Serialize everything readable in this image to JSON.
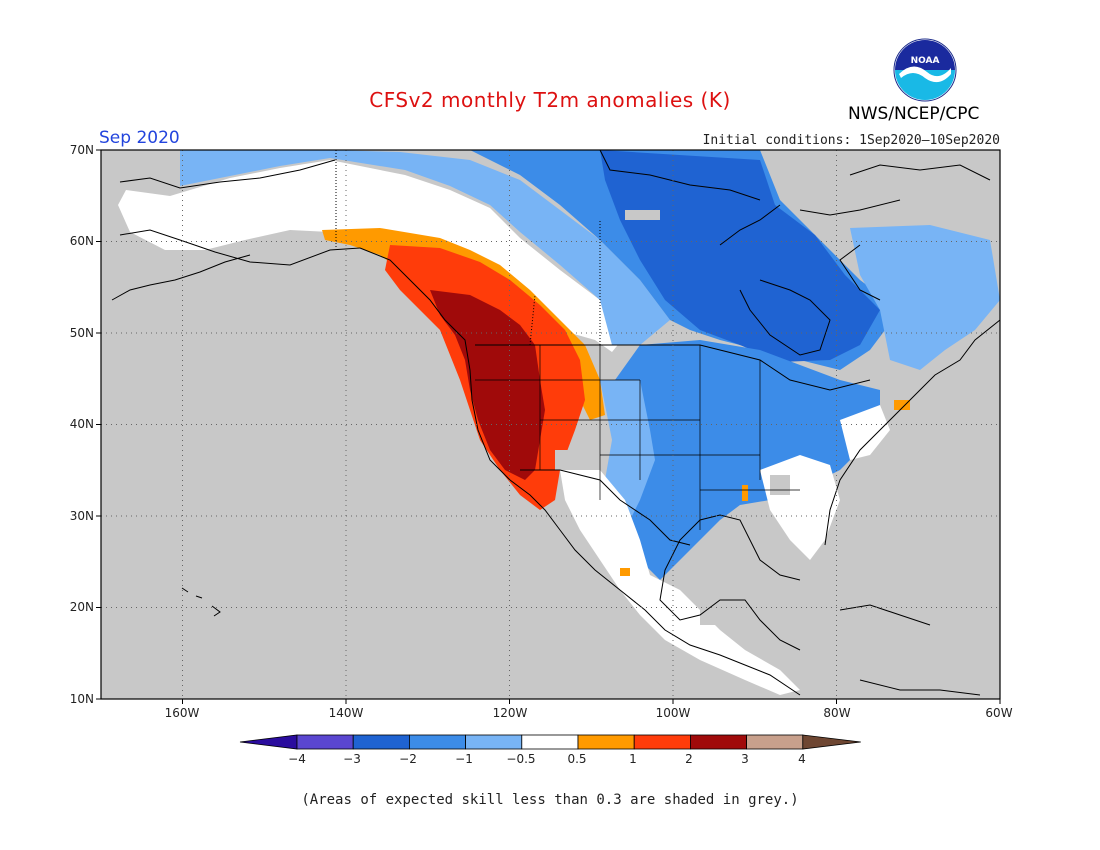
{
  "title": "CFSv2 monthly T2m anomalies (K)",
  "forecast_month": "Sep 2020",
  "initial_conditions": "Initial conditions: 1Sep2020—10Sep2020",
  "agency": "NWS/NCEP/CPC",
  "logo_text": "NOAA",
  "footnote": "(Areas of expected skill less than 0.3 are shaded in grey.)",
  "map": {
    "projection": "cylindrical",
    "lon_range": [
      -170,
      -60
    ],
    "lat_range": [
      10,
      70
    ],
    "lat_labels": [
      "70N",
      "60N",
      "50N",
      "40N",
      "30N",
      "20N",
      "10N"
    ],
    "lon_labels": [
      "160W",
      "140W",
      "120W",
      "100W",
      "80W",
      "60W"
    ],
    "low_skill_color": "#c8c8c8"
  },
  "colorbar": {
    "labels": [
      "−4",
      "−3",
      "−2",
      "−1",
      "−0.5",
      "0.5",
      "1",
      "2",
      "3",
      "4"
    ],
    "colors": [
      "#2a0c9e",
      "#5a46d0",
      "#1f63d2",
      "#3c8ce8",
      "#78b4f5",
      "#ffffff",
      "#ff9a00",
      "#ff3c0a",
      "#a00a0a",
      "#c8a08c",
      "#6e4632"
    ]
  }
}
